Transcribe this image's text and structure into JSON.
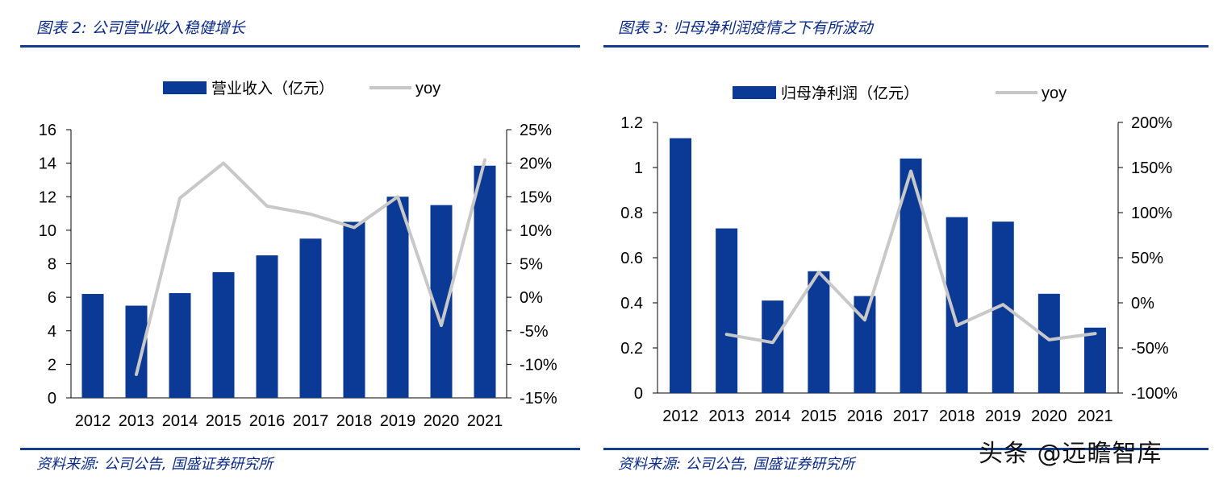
{
  "charts": [
    {
      "title": "图表 2:  公司营业收入稳健增长",
      "source": "资料来源:  公司公告,  国盛证券研究所"
    },
    {
      "title": "图表 3:  归母净利润疫情之下有所波动",
      "source": "资料来源:  公司公告,  国盛证券研究所"
    }
  ],
  "watermark": "头条 @远瞻智库",
  "colors": {
    "bar": "#0a3a96",
    "line": "#c8c8c8",
    "rule": "#163c8c",
    "title": "#0a2a8a"
  },
  "chart_data": [
    {
      "type": "bar",
      "title": "图表 2:  公司营业收入稳健增长",
      "categories": [
        "2012",
        "2013",
        "2014",
        "2015",
        "2016",
        "2017",
        "2018",
        "2019",
        "2020",
        "2021"
      ],
      "series": [
        {
          "name": "营业收入（亿元）",
          "type": "bar",
          "axis": "left",
          "values": [
            6.2,
            5.5,
            6.25,
            7.5,
            8.5,
            9.5,
            10.5,
            12.0,
            11.5,
            13.85
          ]
        },
        {
          "name": "yoy",
          "type": "line",
          "axis": "right",
          "values": [
            null,
            -11.5,
            14.8,
            20.0,
            13.6,
            12.4,
            10.4,
            15.0,
            -4.2,
            20.5
          ]
        }
      ],
      "left_axis": {
        "min": 0,
        "max": 16,
        "ticks": [
          "0",
          "2",
          "4",
          "6",
          "8",
          "10",
          "12",
          "14",
          "16"
        ]
      },
      "right_axis": {
        "min": -15,
        "max": 25,
        "ticks": [
          "-15%",
          "-10%",
          "-5%",
          "0%",
          "5%",
          "10%",
          "15%",
          "20%",
          "25%"
        ]
      },
      "legend": "top-center"
    },
    {
      "type": "bar",
      "title": "图表 3:  归母净利润疫情之下有所波动",
      "categories": [
        "2012",
        "2013",
        "2014",
        "2015",
        "2016",
        "2017",
        "2018",
        "2019",
        "2020",
        "2021"
      ],
      "series": [
        {
          "name": "归母净利润（亿元）",
          "type": "bar",
          "axis": "left",
          "values": [
            1.13,
            0.73,
            0.41,
            0.54,
            0.43,
            1.04,
            0.78,
            0.76,
            0.44,
            0.29
          ]
        },
        {
          "name": "yoy",
          "type": "line",
          "axis": "right",
          "values": [
            null,
            -35,
            -44,
            34,
            -19,
            146,
            -25,
            -2,
            -41,
            -34
          ]
        }
      ],
      "left_axis": {
        "min": 0,
        "max": 1.2,
        "ticks": [
          "0",
          "0.2",
          "0.4",
          "0.6",
          "0.8",
          "1",
          "1.2"
        ]
      },
      "right_axis": {
        "min": -100,
        "max": 200,
        "ticks": [
          "-100%",
          "-50%",
          "0%",
          "50%",
          "100%",
          "150%",
          "200%"
        ]
      },
      "legend": "top-center"
    }
  ]
}
